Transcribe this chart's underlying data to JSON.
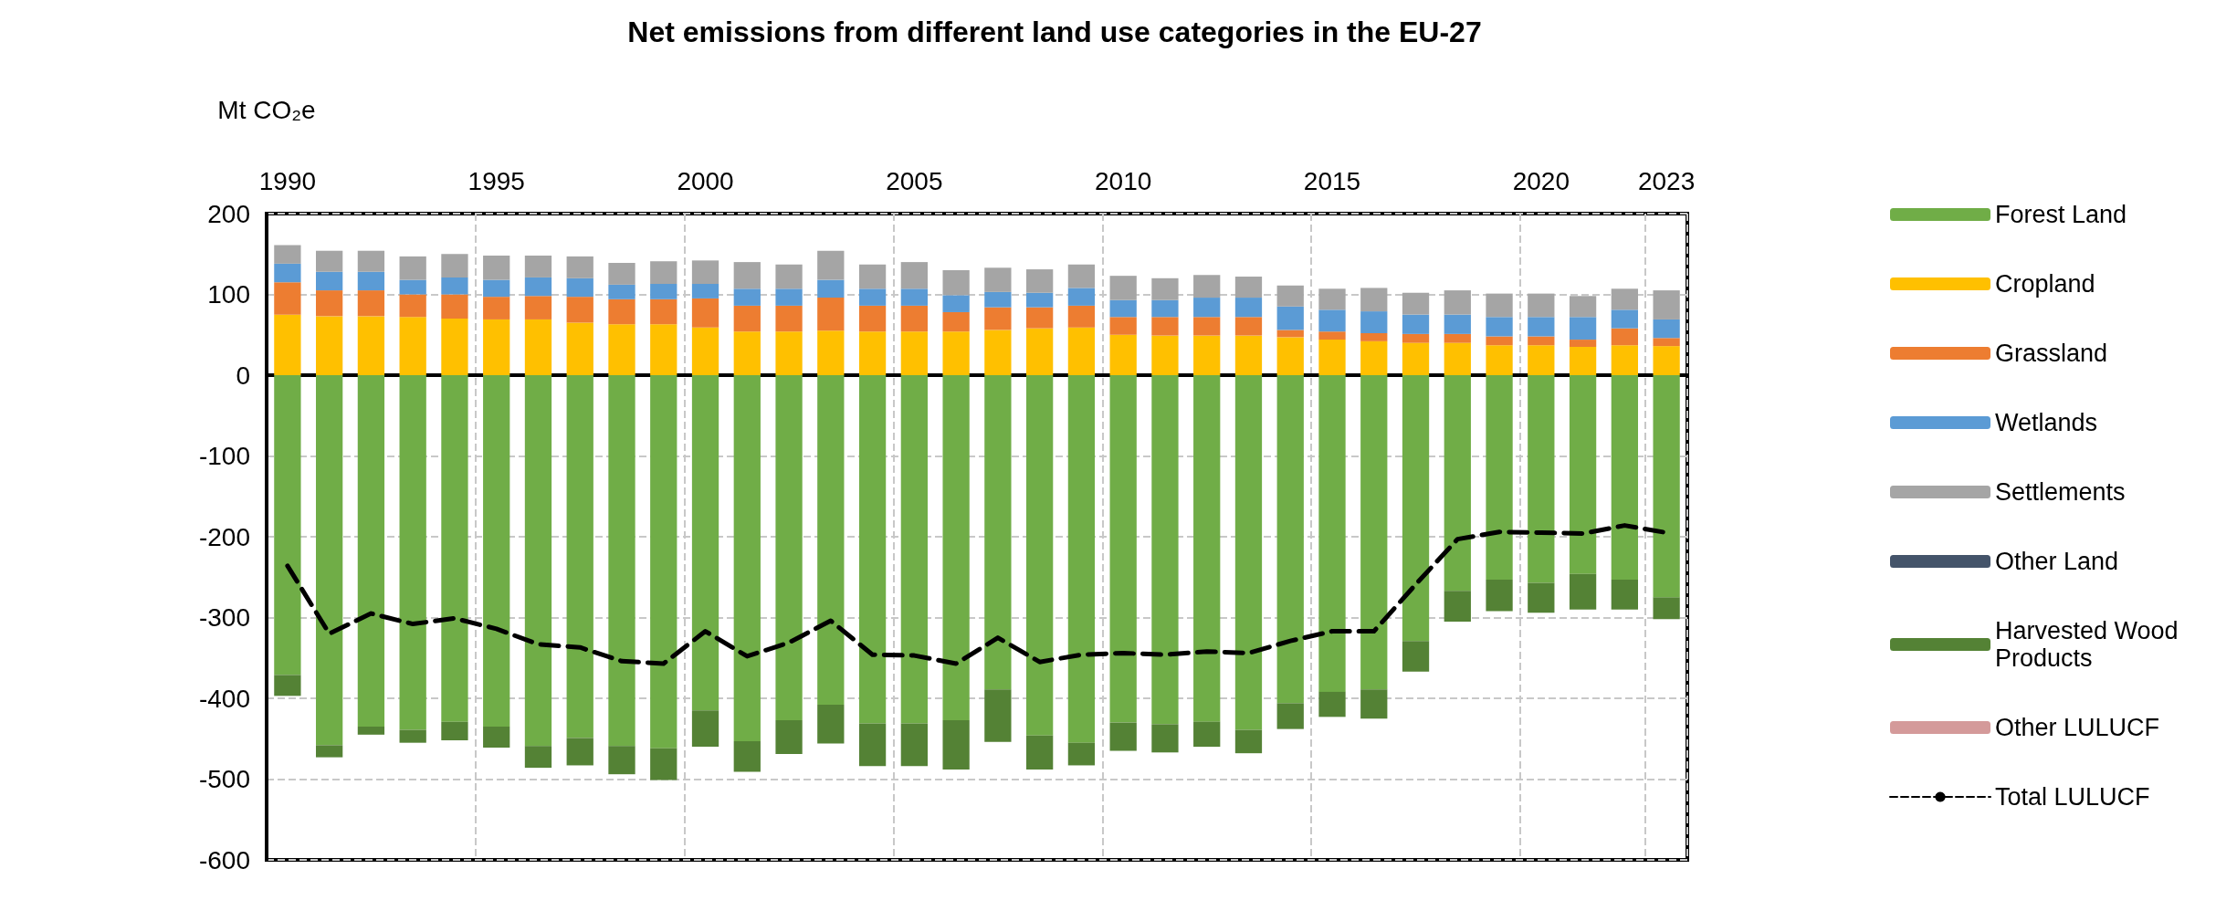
{
  "chart_data": {
    "type": "bar",
    "stacked": true,
    "title": "Net emissions from different land use categories in the EU-27",
    "ylabel": "Mt CO₂e",
    "categories": [
      "1990",
      null,
      null,
      null,
      null,
      "1995",
      null,
      null,
      null,
      null,
      "2000",
      null,
      null,
      null,
      null,
      "2005",
      null,
      null,
      null,
      null,
      "2010",
      null,
      null,
      null,
      null,
      "2015",
      null,
      null,
      null,
      null,
      "2020",
      null,
      null,
      "2023"
    ],
    "ylim": [
      -600,
      200
    ],
    "yticks": [
      -600,
      -500,
      -400,
      -300,
      -200,
      -100,
      0,
      100,
      200
    ],
    "grid": true,
    "legend": "right",
    "series": [
      {
        "name": "Forest Land",
        "color": "#70ad47",
        "values": [
          -371,
          -458,
          -435,
          -439,
          -429,
          -435,
          -459,
          -449,
          -459,
          -462,
          -415,
          -453,
          -427,
          -408,
          -431,
          -431,
          -427,
          -389,
          -446,
          -455,
          -430,
          -432,
          -429,
          -439,
          -406,
          -392,
          -389,
          -329,
          -267,
          -253,
          -257,
          -246,
          -253,
          -275
        ]
      },
      {
        "name": "Cropland",
        "color": "#ffc000",
        "values": [
          75,
          73,
          73,
          72,
          70,
          69,
          69,
          65,
          63,
          63,
          59,
          54,
          54,
          55,
          54,
          54,
          54,
          56,
          58,
          59,
          50,
          49,
          49,
          49,
          47,
          44,
          42,
          40,
          40,
          37,
          37,
          35,
          37,
          36
        ]
      },
      {
        "name": "Grassland",
        "color": "#ed7d31",
        "values": [
          40,
          32,
          32,
          28,
          30,
          28,
          29,
          32,
          31,
          31,
          36,
          32,
          32,
          41,
          32,
          32,
          24,
          28,
          26,
          27,
          22,
          23,
          23,
          23,
          9,
          10,
          10,
          11,
          11,
          11,
          11,
          9,
          21,
          10
        ]
      },
      {
        "name": "Wetlands",
        "color": "#5b9bd5",
        "values": [
          23,
          23,
          23,
          18,
          21,
          21,
          23,
          23,
          18,
          19,
          18,
          21,
          21,
          22,
          21,
          21,
          21,
          19,
          18,
          22,
          21,
          21,
          24,
          24,
          29,
          27,
          27,
          24,
          24,
          24,
          24,
          28,
          23,
          23
        ]
      },
      {
        "name": "Settlements",
        "color": "#a5a5a5",
        "values": [
          23,
          26,
          26,
          29,
          29,
          30,
          27,
          27,
          27,
          28,
          29,
          33,
          30,
          36,
          30,
          33,
          31,
          30,
          29,
          29,
          30,
          27,
          28,
          26,
          26,
          26,
          29,
          27,
          30,
          29,
          29,
          26,
          26,
          36
        ]
      },
      {
        "name": "Other Land",
        "color": "#44546a",
        "values": [
          0,
          0,
          0,
          0,
          0,
          0,
          0,
          0,
          0,
          0,
          0,
          0,
          0,
          0,
          0,
          0,
          0,
          0,
          0,
          0,
          0,
          0,
          0,
          0,
          0,
          0,
          0,
          0,
          0,
          0,
          0,
          0,
          0,
          0
        ]
      },
      {
        "name": "Harvested Wood Products",
        "color": "#548235",
        "values": [
          -26,
          -15,
          -10,
          -16,
          -23,
          -26,
          -27,
          -34,
          -35,
          -39,
          -45,
          -38,
          -42,
          -48,
          -53,
          -53,
          -61,
          -65,
          -42,
          -28,
          -35,
          -35,
          -31,
          -29,
          -32,
          -31,
          -36,
          -38,
          -38,
          -39,
          -37,
          -44,
          -37,
          -27
        ]
      },
      {
        "name": "Other LULUCF",
        "color": "#d49a9a",
        "values": [
          0,
          0,
          0,
          0,
          0,
          0,
          0,
          0,
          0,
          0,
          0,
          0,
          0,
          0,
          0,
          0,
          0,
          0,
          0,
          0,
          0,
          0,
          0,
          0,
          0,
          0,
          0,
          0,
          0,
          0,
          0,
          0,
          0,
          0
        ]
      },
      {
        "name": "Total LULUCF",
        "type": "line",
        "color": "#000000",
        "line_style": "dashed",
        "marker": "none",
        "values": [
          -236,
          -320,
          -295,
          -308,
          -301,
          -314,
          -333,
          -337,
          -354,
          -357,
          -317,
          -348,
          -331,
          -304,
          -346,
          -347,
          -357,
          -325,
          -355,
          -346,
          -344,
          -346,
          -342,
          -344,
          -329,
          -317,
          -317,
          -259,
          -203,
          -194,
          -195,
          -196,
          -186,
          -195
        ]
      }
    ]
  }
}
